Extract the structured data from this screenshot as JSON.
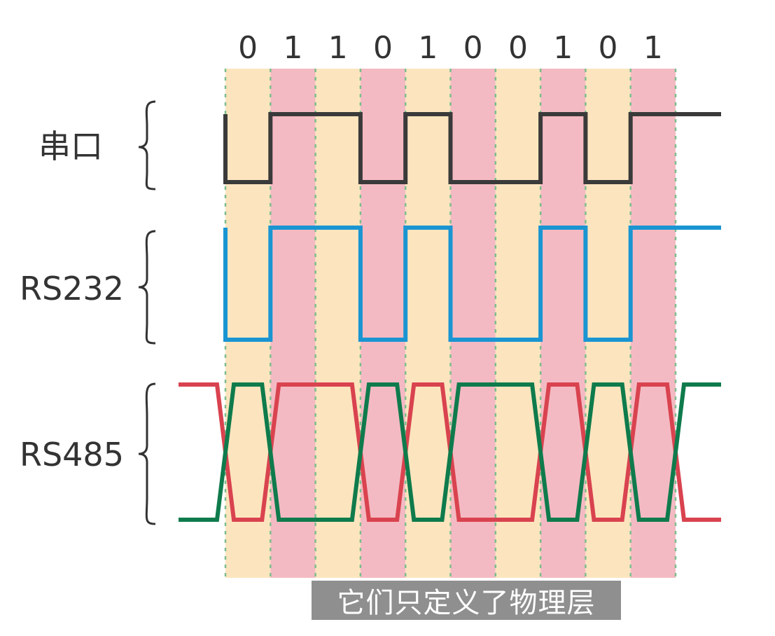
{
  "bits": [
    "0",
    "1",
    "1",
    "0",
    "1",
    "0",
    "0",
    "1",
    "0",
    "1"
  ],
  "rows": {
    "serial": {
      "label": "串口"
    },
    "rs232": {
      "label": "RS232"
    },
    "rs485": {
      "label": "RS485"
    }
  },
  "colors": {
    "band_a": "#FCE5BE",
    "band_b": "#F4BAC3",
    "grid": "#7DBE8E",
    "serial": "#3A3A3A",
    "rs232": "#1A95D2",
    "rs485_a": "#D9434F",
    "rs485_b": "#0F7B4C",
    "brace": "#333333"
  },
  "caption": "它们只定义了物理层"
}
